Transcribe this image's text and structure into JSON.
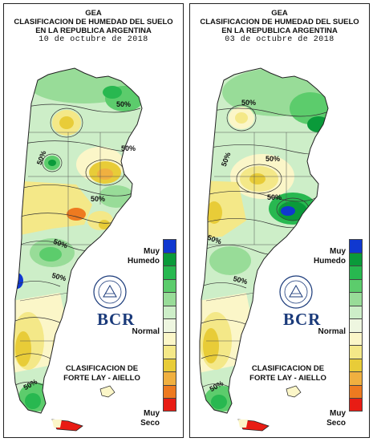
{
  "panels": [
    {
      "org": "GEA",
      "title_line1": "CLASIFICACION DE HUMEDAD DEL SUELO",
      "title_line2": "EN LA REPUBLICA ARGENTINA",
      "date": "10 de octubre de 2018",
      "contour_labels": [
        "50%",
        "50%",
        "50%",
        "50%",
        "50%",
        "50%",
        "50%"
      ]
    },
    {
      "org": "GEA",
      "title_line1": "CLASIFICACION DE HUMEDAD DEL SUELO",
      "title_line2": "EN LA REPUBLICA ARGENTINA",
      "date": "03 de octubre de 2018",
      "contour_labels": [
        "50%",
        "50%",
        "50%",
        "50%",
        "50%",
        "50%",
        "50%"
      ]
    }
  ],
  "legend": {
    "top_label_1": "Muy",
    "top_label_2": "Humedo",
    "mid_label": "Normal",
    "bottom_label_1": "Muy",
    "bottom_label_2": "Seco",
    "colors": [
      "#1038d0",
      "#0a9a3a",
      "#28b850",
      "#5ccc6c",
      "#98dc98",
      "#cdeec8",
      "#eef6e0",
      "#fbf6c8",
      "#f4e888",
      "#e8cc38",
      "#f0b040",
      "#ee7a20",
      "#e81c14"
    ]
  },
  "credit": {
    "line1": "CLASIFICACION DE",
    "line2": "FORTE LAY - AIELLO"
  },
  "logo": {
    "text": "BCR",
    "seal_text": "BOLSA DE COMERCIO DE ROSARIO"
  }
}
